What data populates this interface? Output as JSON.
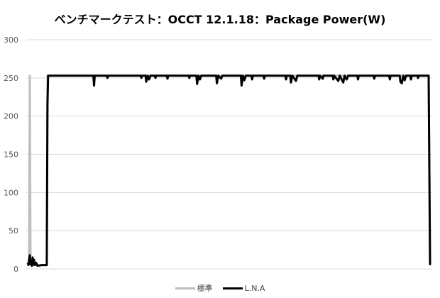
{
  "chart_data": {
    "type": "line",
    "title": "ベンチマークテスト：OCCT 12.1.18：Package Power(W)",
    "xlabel": "",
    "ylabel": "",
    "ylim": [
      0,
      300
    ],
    "yticks": [
      "0",
      "50",
      "100",
      "150",
      "200",
      "250",
      "300"
    ],
    "grid": true,
    "legend": "bottom",
    "series": [
      {
        "name": "標準",
        "color": "#bfbfbf",
        "points": [
          [
            0,
            10
          ],
          [
            2,
            10
          ],
          [
            3,
            253
          ],
          [
            4,
            6
          ],
          [
            6,
            5
          ],
          [
            10,
            5
          ],
          [
            20,
            5
          ],
          [
            27,
            5
          ],
          [
            28,
            253
          ],
          [
            568,
            253
          ],
          [
            570,
            5
          ]
        ]
      },
      {
        "name": "L.N.A",
        "color": "#000000",
        "points": [
          [
            0,
            8
          ],
          [
            1,
            5
          ],
          [
            3,
            18
          ],
          [
            4,
            6
          ],
          [
            5,
            10
          ],
          [
            6,
            4
          ],
          [
            7,
            15
          ],
          [
            8,
            6
          ],
          [
            9,
            12
          ],
          [
            10,
            5
          ],
          [
            12,
            8
          ],
          [
            14,
            4
          ],
          [
            20,
            5
          ],
          [
            27,
            5
          ],
          [
            28,
            215
          ],
          [
            29,
            253
          ],
          [
            93,
            253
          ],
          [
            94,
            240
          ],
          [
            95,
            253
          ],
          [
            112,
            253
          ],
          [
            113,
            250
          ],
          [
            114,
            253
          ],
          [
            160,
            253
          ],
          [
            161,
            250
          ],
          [
            162,
            253
          ],
          [
            167,
            253
          ],
          [
            168,
            245
          ],
          [
            170,
            253
          ],
          [
            172,
            248
          ],
          [
            174,
            253
          ],
          [
            180,
            253
          ],
          [
            181,
            250
          ],
          [
            182,
            253
          ],
          [
            197,
            253
          ],
          [
            198,
            249
          ],
          [
            199,
            253
          ],
          [
            228,
            253
          ],
          [
            229,
            250
          ],
          [
            230,
            253
          ],
          [
            239,
            253
          ],
          [
            240,
            242
          ],
          [
            242,
            253
          ],
          [
            244,
            248
          ],
          [
            246,
            253
          ],
          [
            267,
            253
          ],
          [
            268,
            243
          ],
          [
            270,
            253
          ],
          [
            274,
            249
          ],
          [
            276,
            253
          ],
          [
            302,
            253
          ],
          [
            303,
            240
          ],
          [
            305,
            253
          ],
          [
            307,
            247
          ],
          [
            309,
            253
          ],
          [
            317,
            253
          ],
          [
            318,
            248
          ],
          [
            319,
            253
          ],
          [
            334,
            253
          ],
          [
            335,
            249
          ],
          [
            336,
            253
          ],
          [
            365,
            253
          ],
          [
            366,
            248
          ],
          [
            367,
            253
          ],
          [
            372,
            253
          ],
          [
            373,
            244
          ],
          [
            375,
            253
          ],
          [
            380,
            246
          ],
          [
            382,
            253
          ],
          [
            412,
            253
          ],
          [
            413,
            248
          ],
          [
            414,
            253
          ],
          [
            418,
            249
          ],
          [
            419,
            253
          ],
          [
            432,
            253
          ],
          [
            433,
            248
          ],
          [
            434,
            253
          ],
          [
            440,
            246
          ],
          [
            442,
            253
          ],
          [
            447,
            244
          ],
          [
            449,
            253
          ],
          [
            452,
            248
          ],
          [
            454,
            253
          ],
          [
            467,
            253
          ],
          [
            468,
            248
          ],
          [
            469,
            253
          ],
          [
            490,
            253
          ],
          [
            491,
            249
          ],
          [
            492,
            253
          ],
          [
            512,
            253
          ],
          [
            513,
            248
          ],
          [
            514,
            253
          ],
          [
            527,
            253
          ],
          [
            528,
            245
          ],
          [
            530,
            243
          ],
          [
            532,
            253
          ],
          [
            534,
            247
          ],
          [
            536,
            253
          ],
          [
            542,
            253
          ],
          [
            543,
            248
          ],
          [
            544,
            253
          ],
          [
            552,
            253
          ],
          [
            553,
            250
          ],
          [
            554,
            253
          ],
          [
            568,
            253
          ],
          [
            570,
            5
          ]
        ]
      }
    ]
  }
}
